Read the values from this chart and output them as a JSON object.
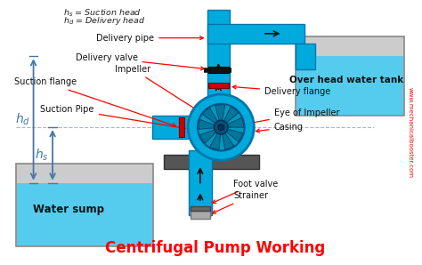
{
  "title": "Centrifugal Pump Working",
  "title_color": "#FF0000",
  "title_fontsize": 12,
  "bg_color": "#FFFFFF",
  "pipe_color": "#00AADD",
  "pipe_edge": "#0077AA",
  "water_color": "#55CCEE",
  "dark_gray": "#555555",
  "red_flange": "#CC0000",
  "black_valve": "#111111",
  "dim_color": "#4477AA",
  "website_color": "#FF0000",
  "delivery_pipe": "Delivery pipe",
  "delivery_valve": "Delivery valve",
  "impeller": "Impeller",
  "suction_flange": "Suction flange",
  "delivery_flange": "Delivery flange",
  "suction_pipe": "Suction Pipe",
  "eye_impeller": "Eye of Impeller",
  "casing": "Casing",
  "foot_valve": "Foot valve",
  "strainer": "Strainer",
  "water_sump": "Water sump",
  "overhead_tank": "Over head water tank",
  "website": "www.mechanicalbooster.com"
}
